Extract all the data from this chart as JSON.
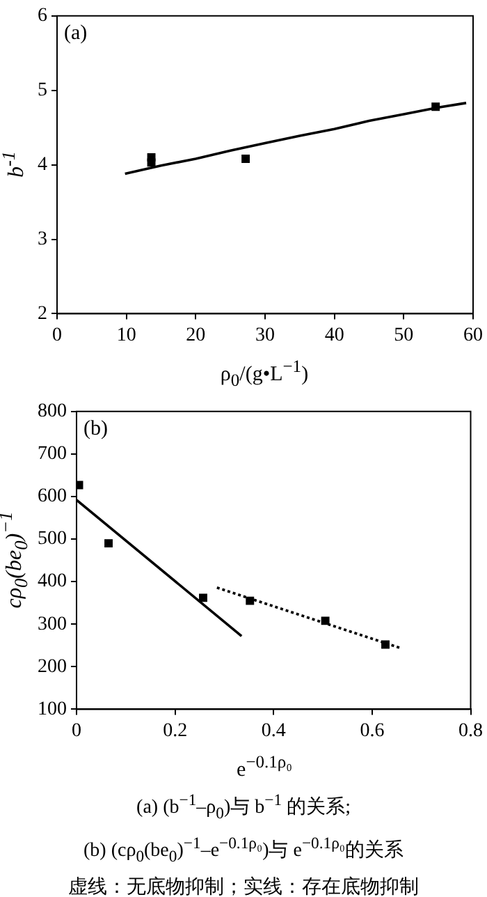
{
  "chart_data": [
    {
      "type": "scatter",
      "annotations": [
        "(a)"
      ],
      "xlabel": "ρ$_{0}$/(g•L$^{−1}$)",
      "ylabel": "b$^{-1}$",
      "xlim": [
        0,
        60
      ],
      "xticks": [
        0,
        10,
        20,
        30,
        40,
        50,
        60
      ],
      "ylim": [
        2,
        6
      ],
      "yticks": [
        2,
        3,
        4,
        5,
        6
      ],
      "series": [
        {
          "type": "scatter",
          "marker": "square",
          "color": "#000000",
          "x": [
            13.6,
            13.6,
            27.2,
            54.6
          ],
          "values": [
            4.1,
            4.03,
            4.08,
            4.78
          ]
        },
        {
          "type": "line",
          "marker": "none",
          "line_style": "solid",
          "color": "#000000",
          "x": [
            9.8,
            15,
            20,
            25,
            30,
            35,
            40,
            45,
            50,
            55,
            59
          ],
          "values": [
            3.88,
            3.99,
            4.08,
            4.19,
            4.29,
            4.39,
            4.48,
            4.59,
            4.68,
            4.77,
            4.83
          ]
        }
      ]
    },
    {
      "type": "scatter",
      "annotations": [
        "(b)",
        "(a) (b$^{−1}$–ρ$_{0}$)与 b$^{−1}$ 的关系;",
        "(b) (cρ$_{0}$(be$_{0}$)$^{−1}$–e$^{−0.1ρ₀}$)与 e$^{−0.1ρ₀}$的关系",
        "虚线：无底物抑制；实线：存在底物抑制"
      ],
      "xlabel": "e$^{−0.1ρ₀}$",
      "ylabel": "cρ$_{0}$(be$_{0}$)$^{−1}$",
      "xlim": [
        0,
        0.8
      ],
      "xticks": [
        0,
        0.2,
        0.4,
        0.6,
        0.8
      ],
      "ylim": [
        100,
        800
      ],
      "yticks": [
        100,
        200,
        300,
        400,
        500,
        600,
        700,
        800
      ],
      "series": [
        {
          "type": "scatter",
          "marker": "square",
          "color": "#000000",
          "x": [
            0.005,
            0.065,
            0.257,
            0.352,
            0.505,
            0.627
          ],
          "values": [
            627,
            490,
            362,
            355,
            308,
            252
          ]
        },
        {
          "type": "line",
          "marker": "none",
          "line_style": "solid",
          "color": "#000000",
          "x": [
            0,
            0.335
          ],
          "values": [
            592,
            272
          ]
        },
        {
          "type": "line",
          "marker": "none",
          "line_style": "dotted",
          "color": "#000000",
          "x": [
            0.285,
            0.66
          ],
          "values": [
            386,
            243
          ]
        }
      ]
    }
  ]
}
